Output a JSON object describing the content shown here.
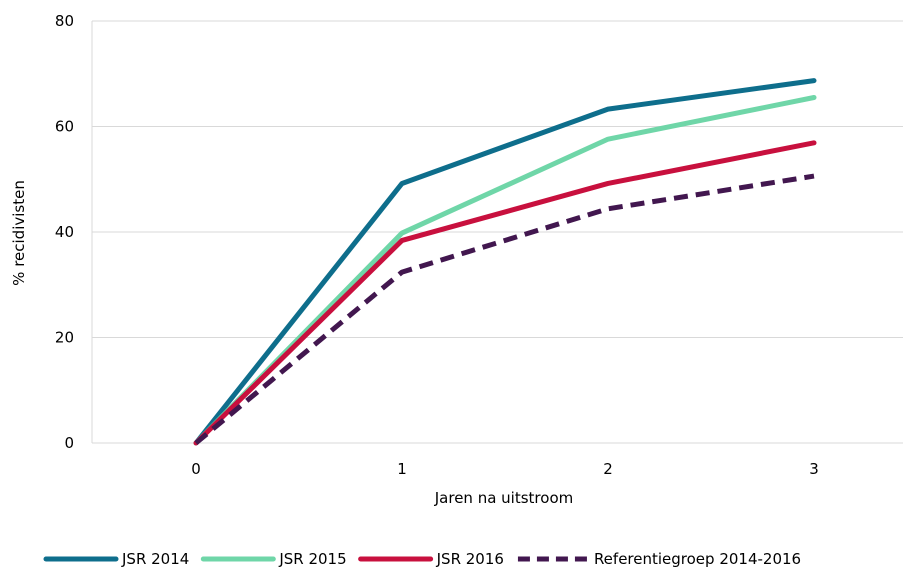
{
  "chart_data": {
    "type": "line",
    "title": "",
    "xlabel": "Jaren na uitstroom",
    "ylabel": "% recidivisten",
    "x": [
      0,
      1,
      2,
      3
    ],
    "x_tick_labels": [
      "0",
      "1",
      "2",
      "3"
    ],
    "ylim": [
      0,
      80
    ],
    "y_ticks": [
      0,
      20,
      40,
      60,
      80
    ],
    "y_tick_labels": [
      "0",
      "20",
      "40",
      "60",
      "80"
    ],
    "grid": "horizontal",
    "legend_position": "bottom",
    "series": [
      {
        "name": "JSR 2014",
        "values": [
          0,
          49.2,
          63.3,
          68.7
        ],
        "color": "#0e6e8c",
        "dashed": false
      },
      {
        "name": "JSR 2015",
        "values": [
          0,
          39.8,
          57.6,
          65.5
        ],
        "color": "#6fd6a8",
        "dashed": false
      },
      {
        "name": "JSR 2016",
        "values": [
          0,
          38.4,
          49.2,
          56.9
        ],
        "color": "#c8103e",
        "dashed": false
      },
      {
        "name": "Referentiegroep 2014-2016",
        "values": [
          0,
          32.4,
          44.4,
          50.6
        ],
        "color": "#42174f",
        "dashed": true
      }
    ]
  }
}
